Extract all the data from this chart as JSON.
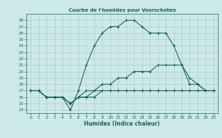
{
  "title": "Courbe de l'humidex pour Voorschoten",
  "xlabel": "Humidex (Indice chaleur)",
  "xlim": [
    -0.5,
    23.5
  ],
  "ylim": [
    13.5,
    29
  ],
  "yticks": [
    14,
    15,
    16,
    17,
    18,
    19,
    20,
    21,
    22,
    23,
    24,
    25,
    26,
    27,
    28
  ],
  "xticks": [
    0,
    1,
    2,
    3,
    4,
    5,
    6,
    7,
    8,
    9,
    10,
    11,
    12,
    13,
    14,
    15,
    16,
    17,
    18,
    19,
    20,
    21,
    22,
    23
  ],
  "bg_color": "#cce8e8",
  "grid_color": "#aacccc",
  "line_color": "#1a6060",
  "lines": [
    {
      "x": [
        0,
        1,
        2,
        3,
        4,
        5,
        6,
        7,
        8,
        9,
        10,
        11,
        12,
        13,
        14,
        15,
        16,
        17,
        18,
        19,
        20,
        21,
        22,
        23
      ],
      "y": [
        17,
        17,
        16,
        16,
        16,
        14,
        17,
        21,
        24,
        26,
        27,
        27,
        28,
        28,
        27,
        26,
        26,
        26,
        24,
        21,
        18,
        18,
        17,
        17
      ]
    },
    {
      "x": [
        0,
        1,
        2,
        3,
        4,
        5,
        6,
        7,
        8,
        9,
        10,
        11,
        12,
        13,
        14,
        15,
        16,
        17,
        18,
        19,
        20,
        21,
        22,
        23
      ],
      "y": [
        17,
        17,
        16,
        16,
        16,
        15,
        16,
        17,
        17,
        18,
        18,
        19,
        19,
        20,
        20,
        20,
        21,
        21,
        21,
        21,
        19,
        18,
        17,
        17
      ]
    },
    {
      "x": [
        0,
        1,
        2,
        3,
        4,
        5,
        6,
        7,
        8,
        9,
        10,
        11,
        12,
        13,
        14,
        15,
        16,
        17,
        18,
        19,
        20,
        21,
        22,
        23
      ],
      "y": [
        17,
        17,
        16,
        16,
        16,
        15,
        16,
        16,
        16,
        17,
        17,
        17,
        17,
        17,
        17,
        17,
        17,
        17,
        17,
        17,
        17,
        17,
        17,
        17
      ]
    },
    {
      "x": [
        0,
        1,
        2,
        3,
        4,
        5,
        6,
        7,
        8,
        9,
        10,
        11,
        12,
        13,
        14,
        15,
        16,
        17,
        18,
        19,
        20,
        21,
        22,
        23
      ],
      "y": [
        17,
        17,
        16,
        16,
        16,
        15,
        16,
        16,
        17,
        17,
        17,
        17,
        17,
        17,
        17,
        17,
        17,
        17,
        17,
        17,
        17,
        17,
        17,
        17
      ]
    }
  ]
}
